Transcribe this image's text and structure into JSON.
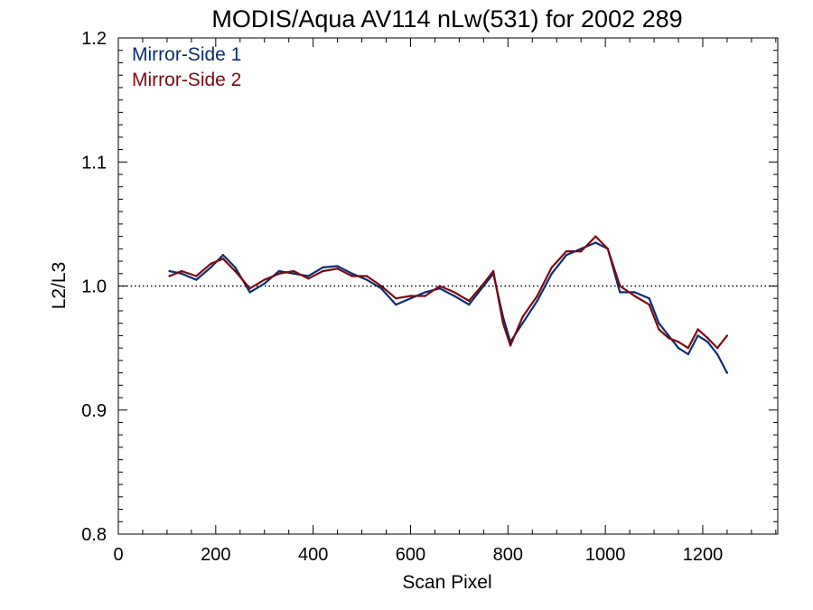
{
  "chart_data": {
    "type": "line",
    "title": "MODIS/Aqua AV114 nLw(531) for 2002 289",
    "xlabel": "Scan Pixel",
    "ylabel": "L2/L3",
    "xlim": [
      0,
      1354
    ],
    "ylim": [
      0.8,
      1.2
    ],
    "x_ticks": [
      "0",
      "200",
      "400",
      "600",
      "800",
      "1000",
      "1200"
    ],
    "y_ticks": [
      "0.8",
      "0.9",
      "1.0",
      "1.1",
      "1.2"
    ],
    "reference_line": {
      "y": 1.0,
      "style": "dotted"
    },
    "legend_placement": "top-left",
    "grid": false,
    "x": [
      105,
      130,
      160,
      190,
      215,
      240,
      270,
      300,
      330,
      360,
      390,
      420,
      450,
      480,
      510,
      540,
      570,
      600,
      630,
      660,
      690,
      720,
      750,
      770,
      790,
      805,
      830,
      860,
      890,
      920,
      950,
      980,
      1005,
      1030,
      1060,
      1090,
      1110,
      1130,
      1150,
      1170,
      1190,
      1210,
      1230,
      1250
    ],
    "series": [
      {
        "name": "Mirror-Side 1",
        "color": "#0b2e6e",
        "values": [
          1.012,
          1.01,
          1.005,
          1.015,
          1.025,
          1.015,
          0.995,
          1.002,
          1.012,
          1.01,
          1.008,
          1.015,
          1.016,
          1.01,
          1.005,
          0.998,
          0.985,
          0.99,
          0.995,
          0.998,
          0.992,
          0.985,
          1.0,
          1.01,
          0.975,
          0.955,
          0.97,
          0.988,
          1.01,
          1.025,
          1.03,
          1.035,
          1.03,
          0.995,
          0.995,
          0.99,
          0.97,
          0.96,
          0.95,
          0.945,
          0.96,
          0.955,
          0.945,
          0.93
        ]
      },
      {
        "name": "Mirror-Side 2",
        "color": "#7a0a14",
        "values": [
          1.008,
          1.012,
          1.008,
          1.018,
          1.022,
          1.012,
          0.998,
          1.005,
          1.01,
          1.012,
          1.006,
          1.012,
          1.014,
          1.008,
          1.008,
          1.0,
          0.99,
          0.992,
          0.992,
          1.0,
          0.995,
          0.988,
          1.002,
          1.012,
          0.97,
          0.952,
          0.975,
          0.992,
          1.015,
          1.028,
          1.028,
          1.04,
          1.03,
          1.0,
          0.992,
          0.985,
          0.965,
          0.958,
          0.955,
          0.95,
          0.965,
          0.958,
          0.95,
          0.96
        ]
      }
    ]
  }
}
